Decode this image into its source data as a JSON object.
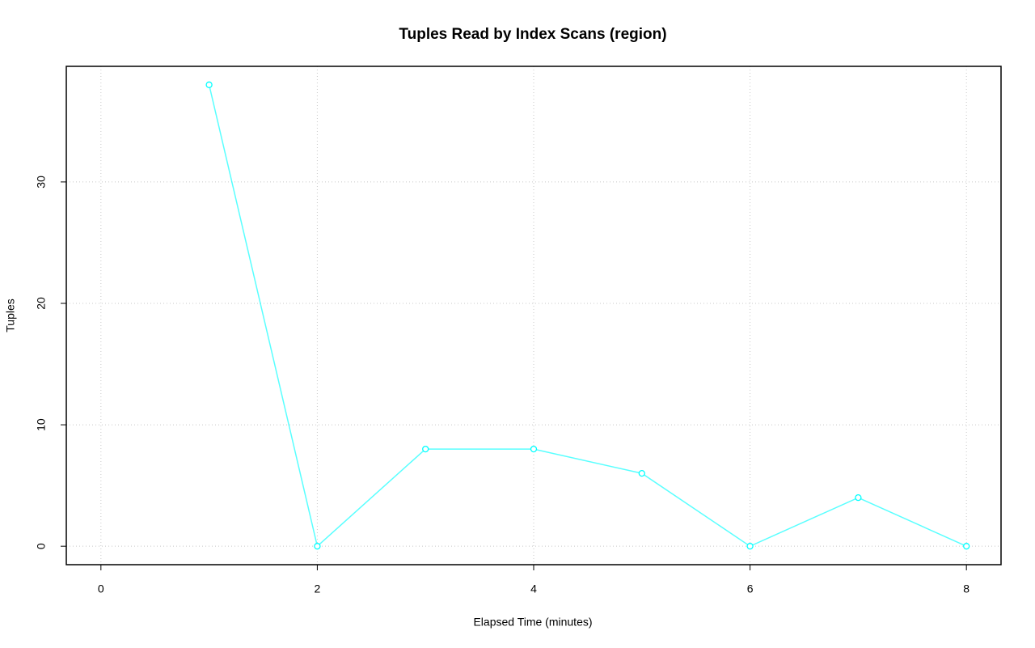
{
  "chart_data": {
    "type": "line",
    "title": "Tuples Read by Index Scans (region)",
    "x_label": "Elapsed Time (minutes)",
    "y_label": "Tuples",
    "x": [
      1,
      2,
      3,
      4,
      5,
      6,
      7,
      8
    ],
    "series": [
      {
        "color": "#00ffff",
        "values": [
          38,
          0,
          8,
          8,
          6,
          0,
          4,
          0
        ]
      }
    ],
    "xlim": [
      -0.32,
      8.32
    ],
    "ylim": [
      -1.52,
      39.52
    ],
    "xticks": [
      0,
      2,
      4,
      6,
      8
    ],
    "yticks": [
      0,
      10,
      20,
      30
    ],
    "grid": true
  }
}
